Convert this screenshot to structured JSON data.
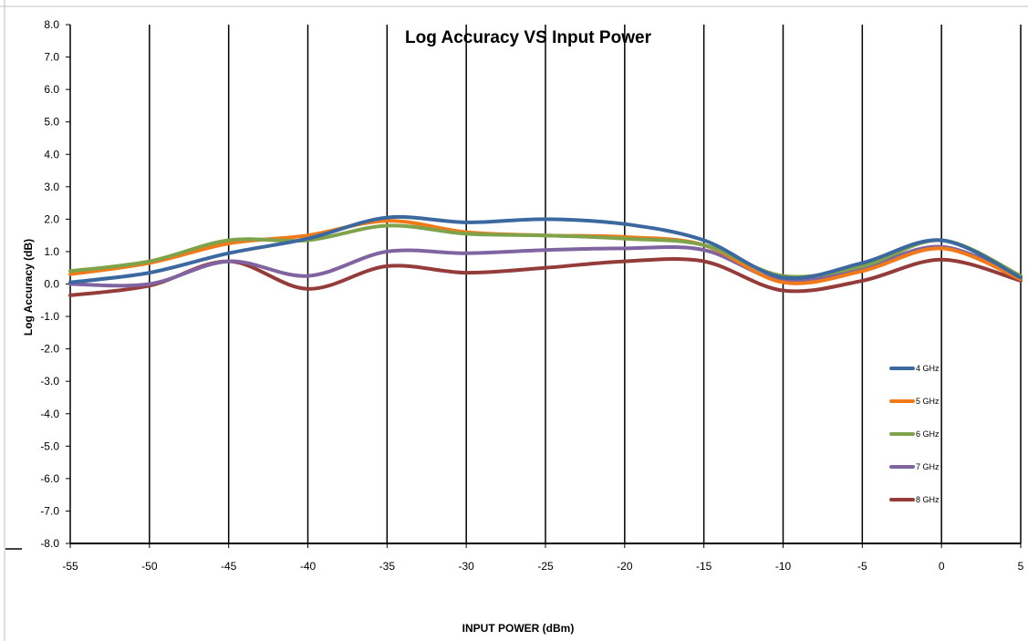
{
  "chart_data": {
    "type": "line",
    "title": "Log Accuracy VS Input Power",
    "xlabel": "INPUT POWER (dBm)",
    "ylabel": "Log Accuracy (dB)",
    "xlim": [
      -55,
      5
    ],
    "ylim": [
      -8,
      8
    ],
    "x_ticks": [
      "-55",
      "-50",
      "-45",
      "-40",
      "-35",
      "-30",
      "-25",
      "-20",
      "-15",
      "-10",
      "-5",
      "0",
      "5"
    ],
    "y_ticks": [
      "8.0",
      "7.0",
      "6.0",
      "5.0",
      "4.0",
      "3.0",
      "2.0",
      "1.0",
      "0.0",
      "-1.0",
      "-2.0",
      "-3.0",
      "-4.0",
      "-5.0",
      "-6.0",
      "-7.0",
      "-8.0"
    ],
    "grid": "vertical",
    "legend_position": "right",
    "x": [
      -55,
      -50,
      -45,
      -40,
      -35,
      -30,
      -25,
      -20,
      -15,
      -10,
      -5,
      0,
      5
    ],
    "series": [
      {
        "name": "4 GHz",
        "color": "#3c68a0",
        "values": [
          0.05,
          0.35,
          0.95,
          1.4,
          2.05,
          1.9,
          2.0,
          1.85,
          1.35,
          0.2,
          0.65,
          1.35,
          0.2
        ]
      },
      {
        "name": "5 GHz",
        "color": "#f07a1a",
        "values": [
          0.3,
          0.65,
          1.25,
          1.5,
          1.95,
          1.6,
          1.5,
          1.45,
          1.2,
          0.05,
          0.4,
          1.1,
          0.15
        ]
      },
      {
        "name": "6 GHz",
        "color": "#7ea34a",
        "values": [
          0.4,
          0.7,
          1.35,
          1.35,
          1.8,
          1.55,
          1.5,
          1.4,
          1.2,
          0.25,
          0.55,
          1.35,
          0.25
        ]
      },
      {
        "name": "7 GHz",
        "color": "#8064a2",
        "values": [
          0.0,
          0.0,
          0.7,
          0.25,
          1.0,
          0.95,
          1.05,
          1.1,
          1.05,
          0.1,
          0.5,
          1.15,
          0.2
        ]
      },
      {
        "name": "8 GHz",
        "color": "#943c3a",
        "values": [
          -0.35,
          -0.05,
          0.7,
          -0.15,
          0.55,
          0.35,
          0.5,
          0.7,
          0.7,
          -0.2,
          0.1,
          0.75,
          0.1
        ]
      }
    ]
  }
}
